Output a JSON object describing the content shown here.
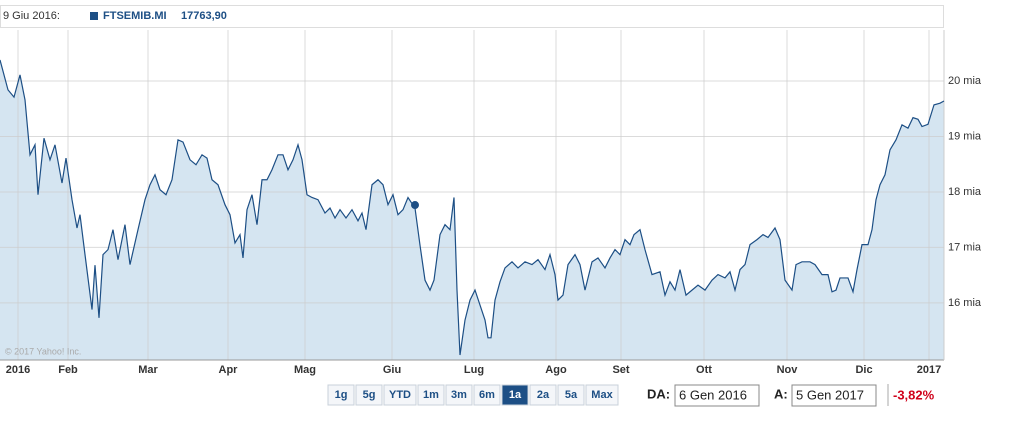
{
  "chart_data": {
    "type": "area-line",
    "hover": {
      "date": "9 Giu 2016:",
      "x": 103.75,
      "value": 17763.9,
      "value_label": "17763,90"
    },
    "copyright": "© 2017 Yahoo! Inc.",
    "series": [
      {
        "name": "FTSEMIB.MI",
        "color": "#1d4f85",
        "fill": "#d5e5f1",
        "x": [
          0,
          2,
          3.5,
          5,
          6.25,
          7.5,
          8.75,
          9.5,
          11,
          12.5,
          13.75,
          15.5,
          16.5,
          18,
          19.25,
          20,
          21.25,
          23,
          23.75,
          24.75,
          25.75,
          27,
          28.25,
          29.5,
          31.25,
          32.5,
          34.5,
          36.25,
          37.5,
          38.75,
          40,
          41.5,
          43,
          44.5,
          45.75,
          47.5,
          49,
          50.5,
          51.75,
          53,
          54.5,
          56.25,
          57.5,
          58.75,
          60,
          60.75,
          61.75,
          63,
          64.25,
          65.5,
          66.75,
          68,
          69.5,
          70.75,
          72,
          73.25,
          74.5,
          75.5,
          76.75,
          78,
          79.5,
          81.25,
          82.5,
          83.75,
          85,
          86.5,
          88,
          89.5,
          90.5,
          91.5,
          93,
          94.5,
          95.75,
          97,
          98.25,
          99.5,
          100.75,
          102,
          103.75,
          105,
          106.25,
          107.5,
          108.5,
          110,
          111.25,
          112.5,
          113.5,
          114.25,
          115,
          116.25,
          117.5,
          118.75,
          120,
          121.25,
          122,
          122.75,
          123.75,
          125,
          126.25,
          128,
          129.5,
          131.25,
          133,
          134.5,
          136.25,
          137.5,
          138.75,
          139.5,
          140.75,
          142,
          143.75,
          145,
          146.25,
          148,
          149.5,
          151.25,
          152.5,
          153.75,
          155,
          156.25,
          157.5,
          158.5,
          160,
          161.25,
          163,
          165,
          166.25,
          167.5,
          168.75,
          170,
          171.5,
          173,
          174.5,
          176.25,
          178,
          179.5,
          181.25,
          182.5,
          183.75,
          185,
          186.25,
          187.5,
          189.25,
          190.75,
          192,
          193.75,
          195,
          196.25,
          198,
          199,
          200.5,
          202.5,
          203.75,
          205.5,
          207,
          208,
          209,
          210,
          212,
          213.25,
          214.25,
          215.5,
          217,
          218,
          219,
          220,
          221.25,
          222.5,
          224,
          225.5,
          227,
          228.25,
          229.5,
          230.5,
          232,
          233.5,
          235,
          236
        ],
        "values": [
          20380,
          19840,
          19710,
          20110,
          19660,
          18670,
          18850,
          17950,
          18970,
          18580,
          18850,
          18160,
          18610,
          17860,
          17350,
          17590,
          16870,
          15880,
          16680,
          15730,
          16870,
          16960,
          17320,
          16780,
          17410,
          16690,
          17320,
          17860,
          18130,
          18310,
          18040,
          17950,
          18220,
          18940,
          18900,
          18580,
          18490,
          18670,
          18610,
          18220,
          18130,
          17770,
          17590,
          17080,
          17230,
          16810,
          17680,
          17950,
          17410,
          18220,
          18220,
          18400,
          18670,
          18670,
          18400,
          18580,
          18850,
          18580,
          17950,
          17900,
          17860,
          17620,
          17710,
          17530,
          17680,
          17530,
          17680,
          17480,
          17620,
          17320,
          18130,
          18220,
          18130,
          17770,
          17950,
          17590,
          17680,
          17900,
          17710,
          17040,
          16410,
          16230,
          16410,
          17230,
          17410,
          17320,
          17900,
          16230,
          15060,
          15690,
          16050,
          16230,
          15960,
          15690,
          15370,
          15370,
          16050,
          16380,
          16630,
          16740,
          16630,
          16740,
          16690,
          16780,
          16600,
          16870,
          16510,
          16050,
          16140,
          16690,
          16870,
          16690,
          16230,
          16740,
          16810,
          16630,
          16810,
          16960,
          16870,
          17140,
          17050,
          17230,
          17320,
          16960,
          16510,
          16560,
          16140,
          16380,
          16230,
          16600,
          16140,
          16230,
          16320,
          16230,
          16410,
          16510,
          16450,
          16560,
          16230,
          16600,
          16690,
          17050,
          17140,
          17230,
          17180,
          17350,
          17140,
          16410,
          16230,
          16690,
          16740,
          16740,
          16690,
          16510,
          16510,
          16200,
          16230,
          16450,
          16450,
          16200,
          16600,
          17050,
          17050,
          17320,
          17860,
          18130,
          18310,
          18760,
          18940,
          19210,
          19150,
          19340,
          19310,
          19180,
          19220,
          19570,
          19600,
          19640
        ]
      }
    ],
    "xlim": [
      0,
      236
    ],
    "xticks": [
      {
        "value": 4.5,
        "label": "2016"
      },
      {
        "value": 17,
        "label": "Feb"
      },
      {
        "value": 37,
        "label": "Mar"
      },
      {
        "value": 57,
        "label": "Apr"
      },
      {
        "value": 76.25,
        "label": "Mag"
      },
      {
        "value": 98,
        "label": "Giu"
      },
      {
        "value": 118.5,
        "label": "Lug"
      },
      {
        "value": 139,
        "label": "Ago"
      },
      {
        "value": 155.25,
        "label": "Set"
      },
      {
        "value": 176,
        "label": "Ott"
      },
      {
        "value": 196.75,
        "label": "Nov"
      },
      {
        "value": 216,
        "label": "Dic"
      },
      {
        "value": 232.25,
        "label": "2017"
      }
    ],
    "ylim": [
      14970,
      20920
    ],
    "yticks": [
      {
        "value": 16000,
        "label": "16 mia"
      },
      {
        "value": 17000,
        "label": "17 mia"
      },
      {
        "value": 18000,
        "label": "18 mia"
      },
      {
        "value": 19000,
        "label": "19 mia"
      },
      {
        "value": 20000,
        "label": "20 mia"
      }
    ],
    "grid": true,
    "controls": {
      "buttons": [
        "1g",
        "5g",
        "YTD",
        "1m",
        "3m",
        "6m",
        "1a",
        "2a",
        "5a",
        "Max"
      ],
      "active": "1a",
      "from_label": "DA:",
      "from": "6 Gen 2016",
      "to_label": "A:",
      "to": "5 Gen 2017",
      "change": "-3,82%"
    }
  }
}
